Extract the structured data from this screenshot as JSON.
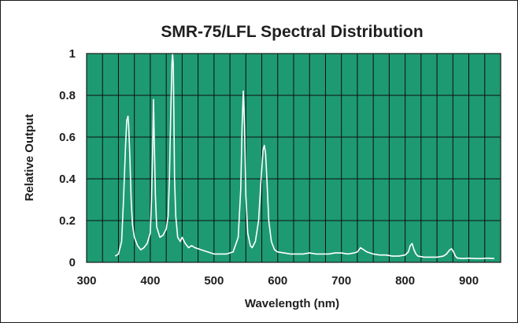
{
  "colors": {
    "plot_background": "#1e9a72",
    "grid": "#0d0d0d",
    "series_line": "#ffffff",
    "frame": "#1a1a1a",
    "text": "#1f1f1f"
  },
  "chart_data": {
    "type": "line",
    "title": "SMR-75/LFL Spectral Distribution",
    "xlabel": "Wavelength (nm)",
    "ylabel": "Relative Output",
    "xlim": [
      300,
      950
    ],
    "ylim": [
      0,
      1
    ],
    "x_ticks": [
      300,
      400,
      500,
      600,
      700,
      800,
      900
    ],
    "x_tick_labels": [
      "300",
      "400",
      "500",
      "600",
      "700",
      "800",
      "900"
    ],
    "y_ticks": [
      0,
      0.2,
      0.4,
      0.6,
      0.8,
      1
    ],
    "y_tick_labels": [
      "0",
      "0.2",
      "0.4",
      "0.6",
      "0.8",
      "1"
    ],
    "grid_x_step": 25,
    "grid_y_step": 0.2,
    "grid": true,
    "legend": "none",
    "series": [
      {
        "x": [
          345,
          350,
          355,
          358,
          361,
          363,
          365,
          366,
          368,
          370,
          372,
          375,
          380,
          385,
          390,
          395,
          400,
          402,
          404,
          405,
          406,
          408,
          410,
          415,
          420,
          425,
          428,
          430,
          432,
          434,
          435,
          436,
          437,
          438,
          440,
          443,
          447,
          450,
          455,
          460,
          465,
          470,
          480,
          490,
          500,
          510,
          520,
          530,
          538,
          542,
          544,
          546,
          548,
          550,
          553,
          557,
          560,
          565,
          570,
          574,
          577,
          579,
          581,
          583,
          586,
          590,
          595,
          600,
          610,
          620,
          630,
          640,
          650,
          660,
          670,
          680,
          690,
          700,
          710,
          720,
          725,
          730,
          735,
          740,
          745,
          750,
          760,
          770,
          780,
          790,
          800,
          805,
          808,
          811,
          814,
          817,
          820,
          830,
          840,
          850,
          860,
          865,
          870,
          873,
          876,
          879,
          882,
          885,
          890,
          900,
          910,
          920,
          930,
          940
        ],
        "y": [
          0.03,
          0.04,
          0.1,
          0.3,
          0.55,
          0.68,
          0.7,
          0.66,
          0.5,
          0.3,
          0.18,
          0.12,
          0.08,
          0.06,
          0.07,
          0.09,
          0.14,
          0.3,
          0.6,
          0.78,
          0.62,
          0.32,
          0.17,
          0.12,
          0.13,
          0.16,
          0.22,
          0.4,
          0.7,
          0.95,
          1.0,
          0.95,
          0.7,
          0.4,
          0.22,
          0.12,
          0.1,
          0.12,
          0.09,
          0.07,
          0.08,
          0.07,
          0.06,
          0.05,
          0.04,
          0.04,
          0.04,
          0.05,
          0.12,
          0.35,
          0.65,
          0.82,
          0.65,
          0.32,
          0.14,
          0.08,
          0.07,
          0.1,
          0.2,
          0.4,
          0.54,
          0.56,
          0.52,
          0.4,
          0.2,
          0.1,
          0.06,
          0.05,
          0.045,
          0.04,
          0.04,
          0.04,
          0.045,
          0.04,
          0.04,
          0.04,
          0.045,
          0.045,
          0.04,
          0.045,
          0.05,
          0.07,
          0.06,
          0.05,
          0.045,
          0.04,
          0.035,
          0.035,
          0.03,
          0.03,
          0.035,
          0.05,
          0.08,
          0.09,
          0.06,
          0.04,
          0.03,
          0.025,
          0.025,
          0.025,
          0.03,
          0.04,
          0.06,
          0.065,
          0.05,
          0.03,
          0.02,
          0.02,
          0.018,
          0.02,
          0.018,
          0.018,
          0.02,
          0.018
        ]
      }
    ]
  }
}
